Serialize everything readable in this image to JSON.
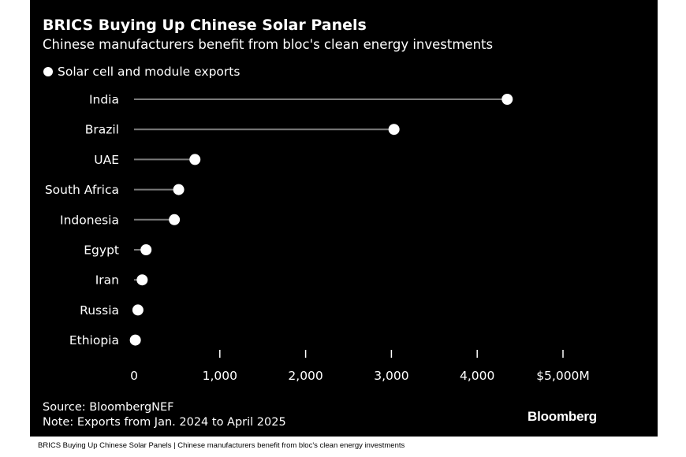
{
  "chart_data": {
    "type": "lollipop",
    "title": "BRICS Buying Up Chinese Solar Panels",
    "subtitle": "Chinese manufacturers benefit from bloc's clean energy investments",
    "legend": [
      "Solar cell and module exports"
    ],
    "categories": [
      "India",
      "Brazil",
      "UAE",
      "South Africa",
      "Indonesia",
      "Egypt",
      "Iran",
      "Russia",
      "Ethiopia"
    ],
    "series": [
      {
        "name": "Solar cell and module exports",
        "values": [
          4350,
          3030,
          710,
          520,
          470,
          140,
          95,
          45,
          15
        ]
      }
    ],
    "x_ticks": [
      0,
      1000,
      2000,
      3000,
      4000,
      5000
    ],
    "x_tick_labels": [
      "0",
      "1,000",
      "2,000",
      "3,000",
      "4,000",
      "$5,000M"
    ],
    "xlim": [
      0,
      5000
    ],
    "grid": false,
    "legend_position": "top-left",
    "colors": {
      "background": "#000000",
      "marker": "#ffffff",
      "stem": "#7a7a7a",
      "text": "#ffffff"
    }
  },
  "footer": {
    "source": "Source: BloombergNEF",
    "note": "Note: Exports from Jan. 2024 to April 2025"
  },
  "brand": "Bloomberg",
  "caption": "BRICS Buying Up Chinese Solar Panels | Chinese manufacturers benefit from bloc's clean energy investments"
}
